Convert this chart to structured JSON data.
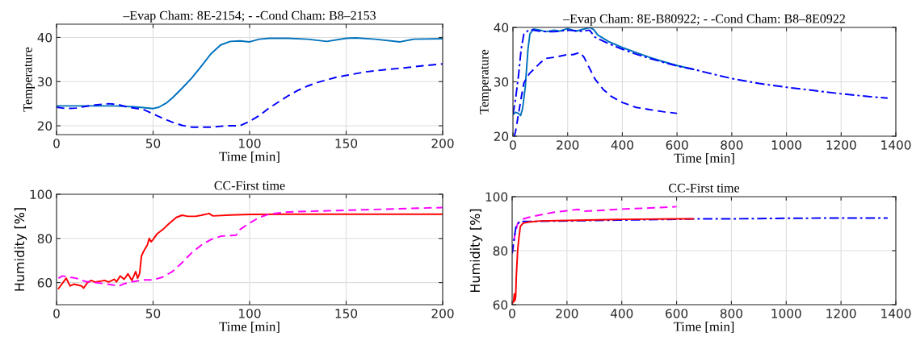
{
  "chart_data": [
    {
      "type": "line",
      "title": "–Evap Cham: 8E-2154; - -Cond Cham: B8–2153",
      "xlabel": "Time [min]",
      "ylabel": "Temperature",
      "xlim": [
        0,
        200
      ],
      "ylim": [
        18,
        43
      ],
      "xticks": [
        0,
        50,
        100,
        150,
        200
      ],
      "yticks": [
        20,
        30,
        40
      ],
      "grid": true,
      "series": [
        {
          "color": "#0072bd",
          "line_style": "solid",
          "x": [
            0,
            10,
            20,
            30,
            40,
            45,
            50,
            53,
            57,
            60,
            65,
            70,
            75,
            80,
            85,
            90,
            95,
            100,
            105,
            110,
            120,
            130,
            140,
            150,
            155,
            165,
            178,
            185,
            200
          ],
          "values": [
            24.5,
            24.5,
            24.5,
            24.5,
            24.3,
            24.1,
            23.9,
            24.2,
            25.2,
            26.3,
            28.5,
            30.8,
            33.5,
            36.3,
            38.3,
            39.1,
            39.2,
            39.0,
            39.6,
            39.8,
            39.8,
            39.6,
            39.1,
            39.8,
            39.9,
            39.6,
            39.0,
            39.6,
            39.7
          ]
        },
        {
          "color": "#0000ff",
          "line_style": "dashed",
          "x": [
            0,
            5,
            10,
            15,
            20,
            27,
            32,
            37,
            45,
            50,
            55,
            60,
            65,
            70,
            80,
            88,
            95,
            100,
            105,
            110,
            115,
            120,
            125,
            130,
            135,
            140,
            145,
            150,
            160,
            170,
            180,
            190,
            200
          ],
          "values": [
            24.2,
            23.9,
            24.0,
            24.4,
            24.7,
            25.0,
            24.8,
            24.2,
            23.7,
            22.7,
            21.7,
            20.8,
            20.1,
            19.7,
            19.7,
            20.0,
            20.0,
            21.0,
            22.3,
            24.0,
            25.4,
            26.8,
            28.0,
            29.0,
            29.8,
            30.4,
            31.0,
            31.4,
            32.2,
            32.7,
            33.1,
            33.6,
            34.0
          ]
        }
      ]
    },
    {
      "type": "line",
      "title": "–Evap Cham: 8E-B80922; - -Cond Cham: B8–8E0922",
      "xlabel": "Time [min]",
      "ylabel": "Temperature",
      "xlim": [
        0,
        1400
      ],
      "ylim": [
        20,
        40
      ],
      "xticks": [
        0,
        200,
        400,
        600,
        800,
        1000,
        1200,
        1400
      ],
      "yticks": [
        20,
        30,
        40
      ],
      "grid": true,
      "series": [
        {
          "color": "#0072bd",
          "line_style": "solid",
          "x": [
            0,
            10,
            20,
            28,
            35,
            45,
            55,
            62,
            75,
            100,
            120,
            150,
            170,
            200,
            230,
            260,
            280,
            295,
            310,
            350,
            400,
            450,
            500,
            550,
            600,
            660
          ],
          "values": [
            24.0,
            24.4,
            24.2,
            23.8,
            25.0,
            29.0,
            36.0,
            38.8,
            39.7,
            39.5,
            39.2,
            39.5,
            39.3,
            39.8,
            39.3,
            39.7,
            40.0,
            39.6,
            38.6,
            37.4,
            36.3,
            35.4,
            34.5,
            33.7,
            33.0,
            32.3
          ]
        },
        {
          "color": "#0000ff",
          "line_style": "dashdot",
          "x": [
            0,
            10,
            20,
            30,
            40,
            60,
            100,
            150,
            200,
            250,
            280,
            300,
            350,
            400,
            450,
            500,
            550,
            600,
            660,
            700,
            800,
            900,
            1000,
            1100,
            1200,
            1300,
            1370
          ],
          "values": [
            24.0,
            27.0,
            31.0,
            36.0,
            38.8,
            39.6,
            39.3,
            39.2,
            39.5,
            39.3,
            39.5,
            38.2,
            37.0,
            36.0,
            35.1,
            34.3,
            33.6,
            32.9,
            32.3,
            31.8,
            30.6,
            29.7,
            29.0,
            28.4,
            27.8,
            27.3,
            27.0
          ]
        },
        {
          "color": "#0000ff",
          "line_style": "dashed",
          "x": [
            5,
            10,
            20,
            30,
            40,
            60,
            80,
            100,
            120,
            150,
            200,
            220,
            245,
            260,
            280,
            300,
            330,
            360,
            400,
            450,
            500,
            550,
            600
          ],
          "values": [
            20.0,
            21.0,
            24.0,
            27.0,
            29.8,
            31.5,
            32.5,
            33.5,
            34.3,
            34.5,
            35.0,
            35.0,
            35.4,
            34.5,
            32.5,
            30.5,
            28.6,
            27.3,
            26.2,
            25.3,
            24.9,
            24.5,
            24.2
          ]
        }
      ]
    },
    {
      "type": "line",
      "title": "CC-First time",
      "xlabel": "Time [min]",
      "ylabel": "Humidity [%]",
      "xlim": [
        0,
        200
      ],
      "ylim": [
        50,
        100
      ],
      "xticks": [
        0,
        50,
        100,
        150,
        200
      ],
      "yticks": [
        60,
        80,
        100
      ],
      "grid": true,
      "series": [
        {
          "color": "#ff0000",
          "line_style": "solid",
          "x": [
            1,
            5,
            7,
            9,
            13,
            14,
            16,
            18,
            20,
            25,
            27,
            30,
            31,
            33,
            35,
            37,
            39,
            41,
            42,
            43,
            44,
            45,
            47,
            48,
            49,
            50,
            52,
            55,
            58,
            62,
            65,
            68,
            72,
            75,
            79,
            81,
            90,
            100,
            120,
            150,
            200
          ],
          "values": [
            57.3,
            62.0,
            58.5,
            59.3,
            58.5,
            57.5,
            60.0,
            61.0,
            60.2,
            61.0,
            60.3,
            61.5,
            60.3,
            63.0,
            61.5,
            64.0,
            61.0,
            65.0,
            62.0,
            64.0,
            72.0,
            74.0,
            77.0,
            80.0,
            78.5,
            79.5,
            82.0,
            84.0,
            86.5,
            89.5,
            90.5,
            90.0,
            90.0,
            90.5,
            91.3,
            90.2,
            90.6,
            90.9,
            91.0,
            91.0,
            91.0
          ]
        },
        {
          "color": "#ff00ff",
          "line_style": "dashed",
          "x": [
            1,
            3,
            10,
            15,
            20,
            25,
            30,
            32,
            35,
            40,
            45,
            50,
            55,
            60,
            65,
            70,
            75,
            80,
            85,
            93,
            95,
            100,
            105,
            110,
            120,
            140,
            160,
            200
          ],
          "values": [
            62.0,
            63.0,
            62.0,
            60.5,
            60.0,
            59.5,
            58.8,
            58.3,
            59.5,
            60.5,
            61.2,
            61.2,
            62.5,
            65.0,
            69.0,
            73.5,
            77.0,
            79.5,
            81.0,
            81.5,
            84.0,
            87.0,
            89.5,
            91.0,
            92.0,
            92.5,
            93.0,
            94.0
          ]
        }
      ]
    },
    {
      "type": "line",
      "title": "CC-First time",
      "xlabel": "Time [min]",
      "ylabel": "Humidity [%]",
      "xlim": [
        0,
        1400
      ],
      "ylim": [
        60,
        100
      ],
      "xticks": [
        0,
        200,
        400,
        600,
        800,
        1000,
        1200,
        1400
      ],
      "yticks": [
        60,
        80,
        100
      ],
      "grid": true,
      "series": [
        {
          "color": "#ff00ff",
          "line_style": "dashed",
          "x": [
            0,
            5,
            10,
            20,
            30,
            60,
            100,
            150,
            200,
            240,
            260,
            300,
            400,
            500,
            600
          ],
          "values": [
            79.0,
            82.0,
            86.0,
            90.0,
            91.5,
            92.3,
            93.2,
            94.2,
            94.8,
            95.3,
            94.6,
            94.8,
            95.4,
            95.8,
            96.3
          ]
        },
        {
          "color": "#0000ff",
          "line_style": "dashdot",
          "x": [
            0,
            5,
            15,
            30,
            50,
            700,
            800,
            1000,
            1200,
            1370
          ],
          "values": [
            79.0,
            83.0,
            89.5,
            90.8,
            90.8,
            91.8,
            91.8,
            92.0,
            92.1,
            92.1
          ]
        },
        {
          "color": "#ff0000",
          "line_style": "solid",
          "x": [
            0,
            5,
            8,
            10,
            13,
            15,
            20,
            25,
            30,
            40,
            60,
            100,
            200,
            400,
            600,
            660
          ],
          "values": [
            60.5,
            61.0,
            64.0,
            61.5,
            63.0,
            70.0,
            80.0,
            85.0,
            89.0,
            90.2,
            90.6,
            91.0,
            91.2,
            91.6,
            91.8,
            91.8
          ]
        }
      ]
    }
  ]
}
